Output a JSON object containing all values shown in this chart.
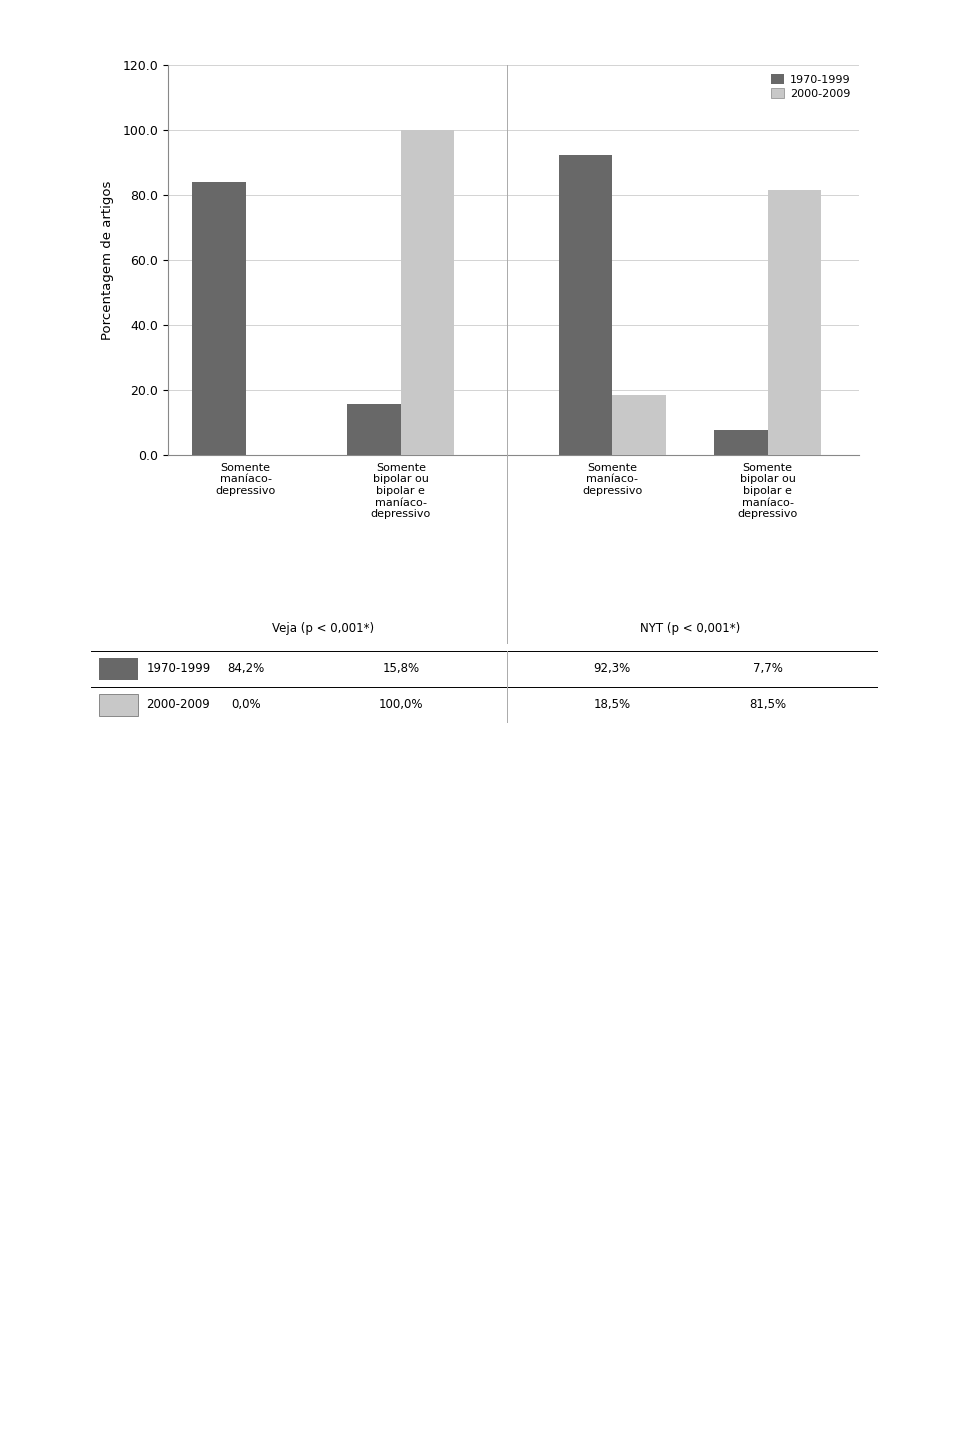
{
  "ylabel": "Porcentagem de artigos",
  "ylim": [
    0,
    120
  ],
  "yticks": [
    0.0,
    20.0,
    40.0,
    60.0,
    80.0,
    100.0,
    120.0
  ],
  "color_1970": "#686868",
  "color_2000": "#c8c8c8",
  "groups": [
    {
      "label": "Somente\nmaníaco-\ndepressivo",
      "values_1970": 84.2,
      "values_2000": 0.0
    },
    {
      "label": "Somente\nbipolar ou\nbipolar e\nmaníaco-\ndepressivo",
      "values_1970": 15.8,
      "values_2000": 100.0
    },
    {
      "label": "Somente\nmaníaco-\ndepressivo",
      "values_1970": 92.3,
      "values_2000": 18.5
    },
    {
      "label": "Somente\nbipolar ou\nbipolar e\nmaníaco-\ndepressivo",
      "values_1970": 7.7,
      "values_2000": 81.5
    }
  ],
  "group_labels": [
    "Veja (p < 0,001*)",
    "NYT (p < 0,001*)"
  ],
  "table_rows": [
    {
      "legend_color": "#686868",
      "legend_style": "filled",
      "label": "1970-1999",
      "values": [
        "84,2%",
        "15,8%",
        "",
        "92,3%",
        "7,7%"
      ]
    },
    {
      "legend_color": "#c8c8c8",
      "legend_style": "empty",
      "label": "2000-2009",
      "values": [
        "0,0%",
        "100,0%",
        "",
        "18,5%",
        "81,5%"
      ]
    }
  ],
  "legend_1970": "1970-1999",
  "legend_2000": "2000-2009",
  "bar_width": 0.38
}
